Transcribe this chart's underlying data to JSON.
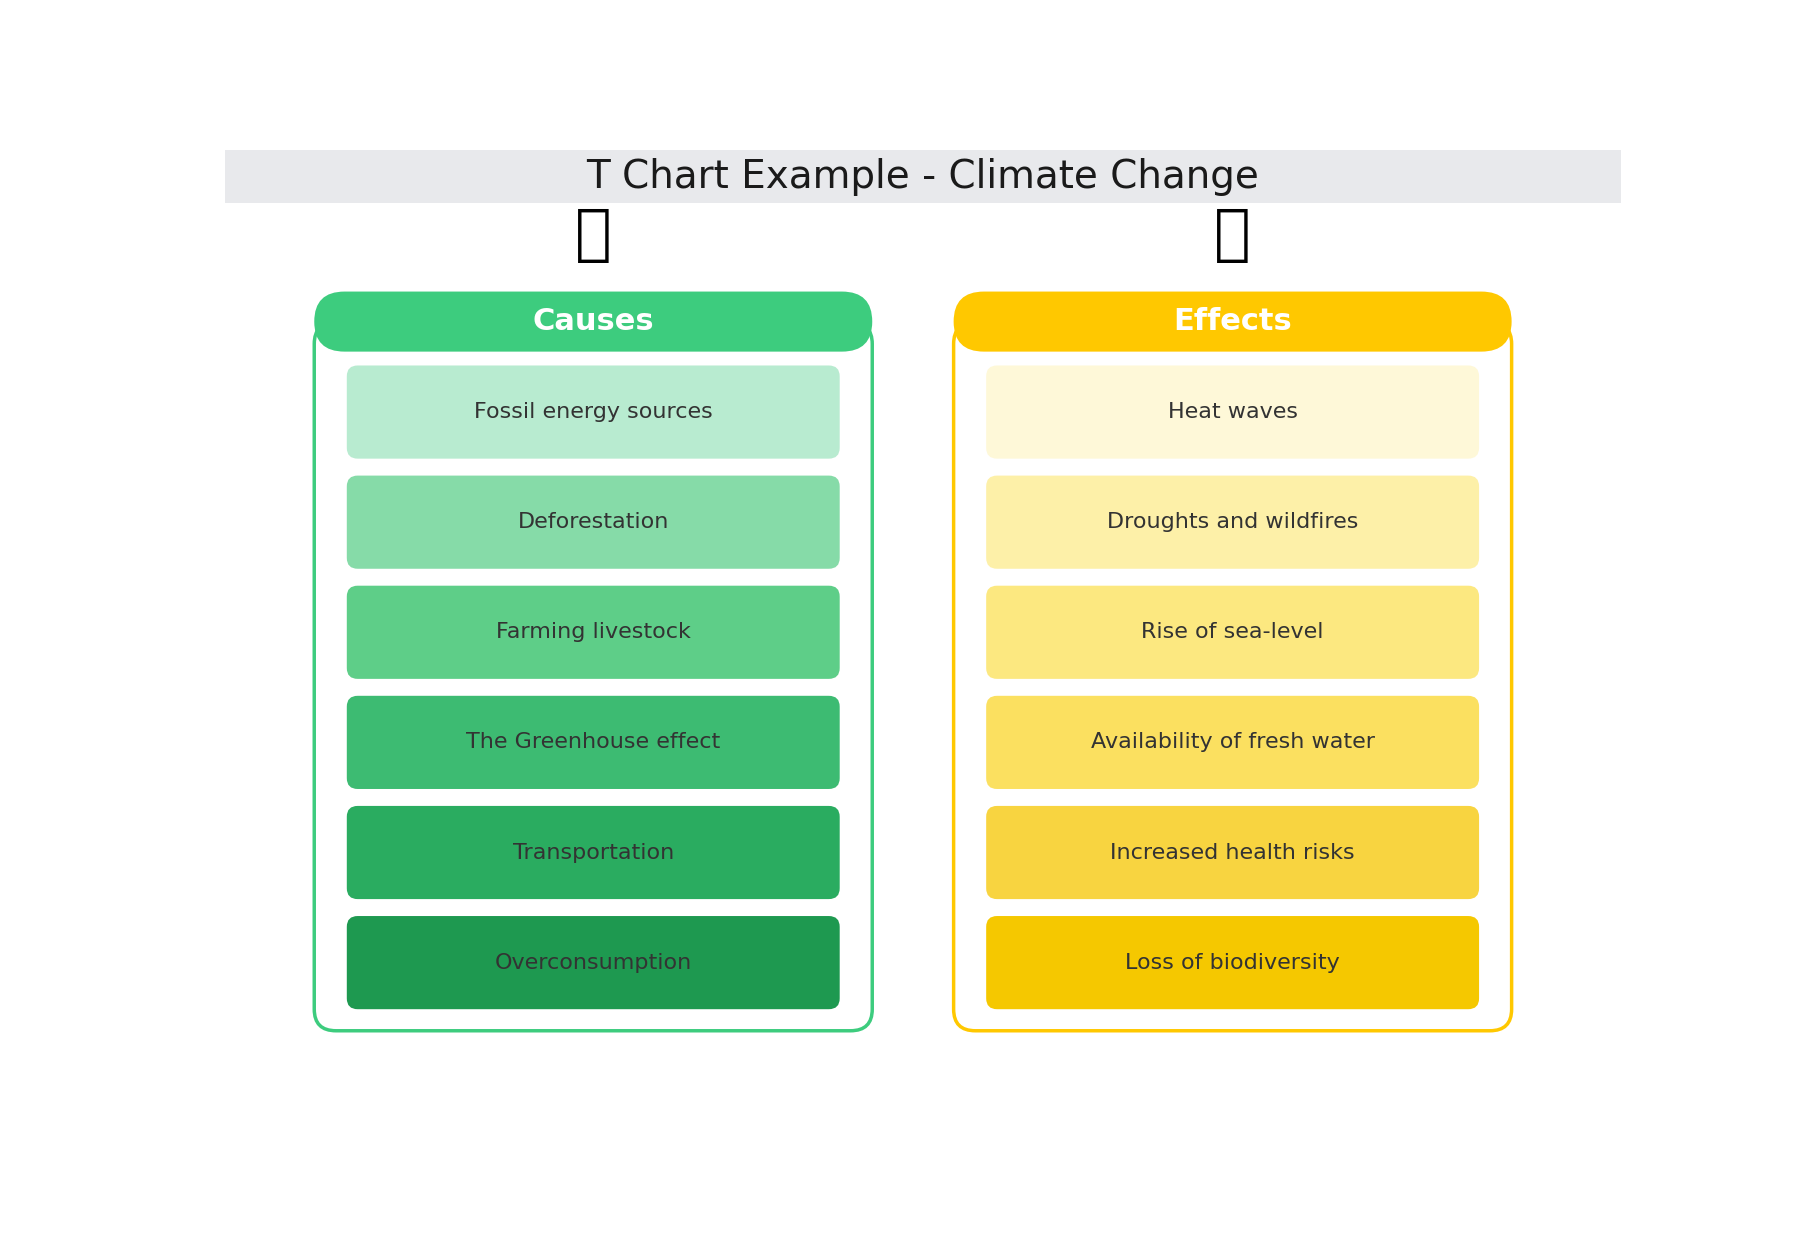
{
  "title": "T Chart Example - Climate Change",
  "title_fontsize": 26,
  "bg_top_color": "#e8e9ec",
  "bg_bottom_color": "#ffffff",
  "left_column": {
    "header": "Causes",
    "header_bg": "#3dcc7e",
    "header_text_color": "#ffffff",
    "border_color": "#3dcc7e",
    "items": [
      "Fossil energy sources",
      "Deforestation",
      "Farming livestock",
      "The Greenhouse effect",
      "Transportation",
      "Overconsumption"
    ],
    "item_colors": [
      "#b8ebd0",
      "#86dba8",
      "#5ece88",
      "#3dbb72",
      "#2aac60",
      "#1e9950"
    ]
  },
  "right_column": {
    "header": "Effects",
    "header_bg": "#ffc800",
    "header_text_color": "#ffffff",
    "border_color": "#ffc800",
    "items": [
      "Heat waves",
      "Droughts and wildfires",
      "Rise of sea-level",
      "Availability of fresh water",
      "Increased health risks",
      "Loss of biodiversity"
    ],
    "item_colors": [
      "#fef8d8",
      "#fdf0a8",
      "#fce880",
      "#fbe060",
      "#f8d440",
      "#f5c800"
    ]
  }
}
